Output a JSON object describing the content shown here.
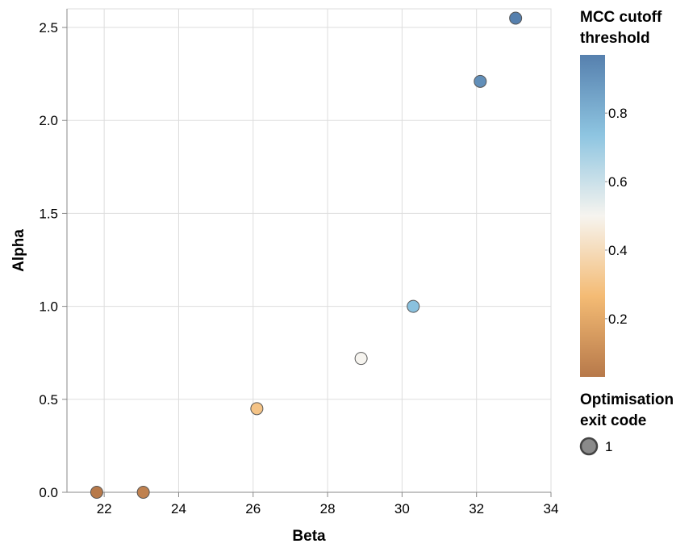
{
  "chart_data": {
    "type": "scatter",
    "xlabel": "Beta",
    "ylabel": "Alpha",
    "xlim": [
      21,
      34
    ],
    "ylim": [
      0,
      2.6
    ],
    "x_ticks": [
      22,
      24,
      26,
      28,
      30,
      32,
      34
    ],
    "y_ticks": [
      0,
      0.5,
      1,
      1.5,
      2,
      2.5
    ],
    "x_tick_labels": [
      "22",
      "24",
      "26",
      "28",
      "30",
      "32",
      "34"
    ],
    "y_tick_labels": [
      "0.0",
      "0.5",
      "1.0",
      "1.5",
      "2.0",
      "2.5"
    ],
    "grid": true,
    "points": [
      {
        "x": 21.8,
        "y": 0.0,
        "mcc_cutoff": 0.03,
        "exit_code": 1
      },
      {
        "x": 23.05,
        "y": 0.0,
        "mcc_cutoff": 0.06,
        "exit_code": 1
      },
      {
        "x": 26.1,
        "y": 0.45,
        "mcc_cutoff": 0.3,
        "exit_code": 1
      },
      {
        "x": 28.9,
        "y": 0.72,
        "mcc_cutoff": 0.5,
        "exit_code": 1
      },
      {
        "x": 30.3,
        "y": 1.0,
        "mcc_cutoff": 0.75,
        "exit_code": 1
      },
      {
        "x": 32.1,
        "y": 2.21,
        "mcc_cutoff": 0.92,
        "exit_code": 1
      },
      {
        "x": 33.05,
        "y": 2.55,
        "mcc_cutoff": 0.97,
        "exit_code": 1
      }
    ],
    "color_legend": {
      "title_lines": [
        "MCC cutoff",
        "threshold"
      ],
      "domain": [
        0.03,
        0.97
      ],
      "ticks": [
        0.2,
        0.4,
        0.6,
        0.8
      ],
      "tick_labels": [
        "0.2",
        "0.4",
        "0.6",
        "0.8"
      ],
      "color_stops": [
        "#b7794a",
        "#f4bb74",
        "#f6f4ef",
        "#8ec5e1",
        "#5680ae"
      ]
    },
    "shape_legend": {
      "title_lines": [
        "Optimisation",
        "exit code"
      ],
      "entries": [
        "1"
      ],
      "symbol_fill": "#8a8a8a",
      "symbol_stroke": "#444444"
    },
    "colors": {
      "grid": "#dddddd",
      "axis": "#888888",
      "point_stroke": "#555555"
    }
  }
}
